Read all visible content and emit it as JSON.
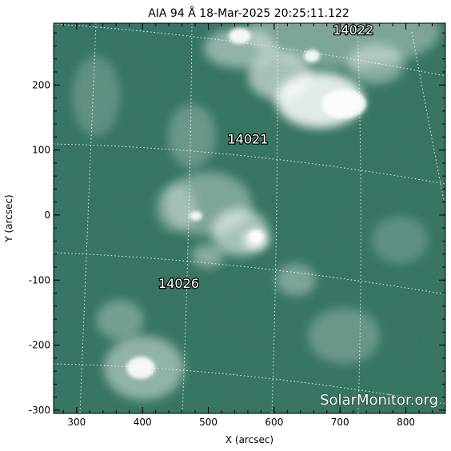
{
  "title": "AIA 94 Å 18-Mar-2025 20:25:11.122",
  "x_axis": {
    "label": "X (arcsec)",
    "range": [
      265,
      860
    ],
    "ticks": [
      300,
      400,
      500,
      600,
      700,
      800
    ]
  },
  "y_axis": {
    "label": "Y (arcsec)",
    "range": [
      -305,
      295
    ],
    "ticks": [
      200,
      100,
      0,
      -100,
      -200,
      -300
    ]
  },
  "regions": [
    {
      "id": "14022",
      "x": 720,
      "y": 278
    },
    {
      "id": "14021",
      "x": 560,
      "y": 110
    },
    {
      "id": "14026",
      "x": 455,
      "y": -112
    }
  ],
  "watermark": "SolarMonitor.org",
  "colors": {
    "background": "#2b6b5a",
    "bright": "#ffffff",
    "grid": "#ffffff"
  }
}
